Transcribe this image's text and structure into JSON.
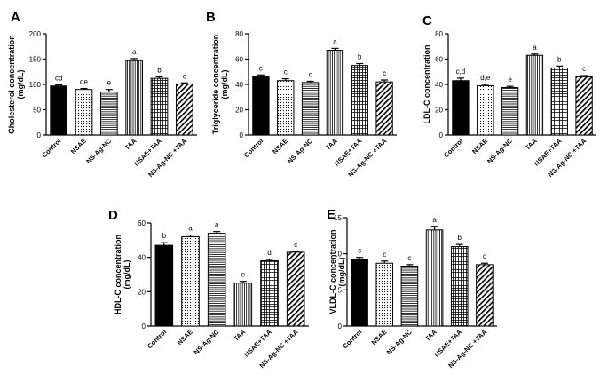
{
  "categories": [
    "Control",
    "NSAE",
    "NS-Ag-NC",
    "TAA",
    "NSAE+TAA",
    "NS-Ag-NC +TAA"
  ],
  "chart_data": [
    {
      "type": "bar",
      "panel": "A",
      "ylabel_line1": "Cholesterol concentration",
      "ylabel_line2": "(mg/dL)",
      "ylim": [
        0,
        200
      ],
      "ticks": [
        0,
        50,
        100,
        150,
        200
      ],
      "values": [
        97,
        90,
        85,
        147,
        112,
        101
      ],
      "errors": [
        2,
        2,
        5,
        4,
        3,
        2
      ],
      "significance": [
        "cd",
        "de",
        "e",
        "a",
        "b",
        "c"
      ]
    },
    {
      "type": "bar",
      "panel": "B",
      "ylabel_line1": "Triglyceride concentration",
      "ylabel_line2": "(mg/dL)",
      "ylim": [
        0,
        80
      ],
      "ticks": [
        0,
        20,
        40,
        60,
        80
      ],
      "values": [
        46,
        43,
        41.5,
        67,
        55,
        42
      ],
      "errors": [
        1.5,
        1.5,
        1,
        1.5,
        1.5,
        1.5
      ],
      "significance": [
        "c",
        "c",
        "c",
        "a",
        "b",
        "c"
      ]
    },
    {
      "type": "bar",
      "panel": "C",
      "ylabel_line1": "LDL-C concentration",
      "ylabel_line2": "",
      "ylim": [
        0,
        80
      ],
      "ticks": [
        0,
        20,
        40,
        60,
        80
      ],
      "values": [
        43,
        39,
        37.5,
        63,
        53,
        46
      ],
      "errors": [
        2,
        1,
        1,
        1,
        1.5,
        1
      ],
      "significance": [
        "c,d",
        "d,e",
        "e",
        "a",
        "b",
        "c"
      ]
    },
    {
      "type": "bar",
      "panel": "D",
      "ylabel_line1": "HDL-C concentration",
      "ylabel_line2": "(mg/dL)",
      "ylim": [
        0,
        60
      ],
      "ticks": [
        0,
        20,
        40,
        60
      ],
      "values": [
        47,
        52,
        54,
        25,
        38,
        43
      ],
      "errors": [
        1.5,
        1,
        1,
        1,
        0.8,
        0.5
      ],
      "significance": [
        "b",
        "a",
        "a",
        "e",
        "d",
        "c"
      ]
    },
    {
      "type": "bar",
      "panel": "E",
      "ylabel_line1": "VLDL-C concentration",
      "ylabel_line2": "(mg/dL)",
      "ylim": [
        0,
        15
      ],
      "ticks": [
        0,
        5,
        10,
        15
      ],
      "values": [
        9.2,
        8.7,
        8.3,
        13.3,
        11,
        8.5
      ],
      "errors": [
        0.3,
        0.3,
        0.2,
        0.5,
        0.3,
        0.2
      ],
      "significance": [
        "c",
        "c",
        "c",
        "a",
        "b",
        "c"
      ]
    }
  ]
}
